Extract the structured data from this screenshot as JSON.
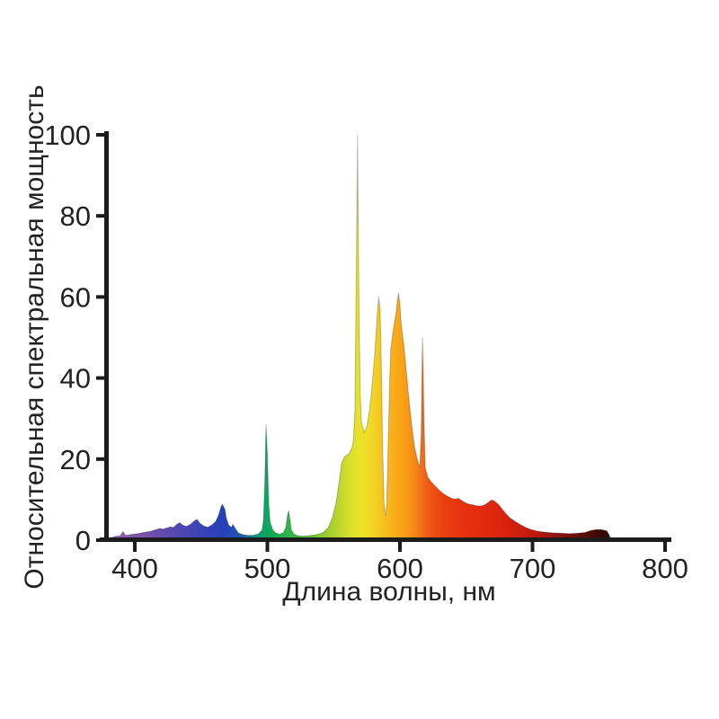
{
  "figure": {
    "background": "#ffffff",
    "axis_color": "#1c1c1c",
    "label_color": "#222222"
  },
  "chart_data": {
    "type": "area",
    "title": "",
    "xlabel": "Длина волны, нм",
    "ylabel": "Относительная спектральная мощность",
    "xlim": [
      378,
      800
    ],
    "ylim": [
      0,
      100
    ],
    "x_ticks": [
      400,
      500,
      600,
      700,
      800
    ],
    "y_ticks": [
      0,
      20,
      40,
      60,
      80,
      100
    ],
    "grid": false,
    "legend": false,
    "fill_style": "spectral-gradient",
    "points": [
      [
        378,
        0
      ],
      [
        382,
        0.6
      ],
      [
        386,
        1.0
      ],
      [
        389,
        1.1
      ],
      [
        391,
        2.1
      ],
      [
        393,
        1.2
      ],
      [
        397,
        1.4
      ],
      [
        402,
        1.6
      ],
      [
        407,
        1.9
      ],
      [
        412,
        2.2
      ],
      [
        416,
        2.6
      ],
      [
        419,
        2.9
      ],
      [
        421,
        2.7
      ],
      [
        424,
        3.0
      ],
      [
        427,
        3.3
      ],
      [
        429,
        3.1
      ],
      [
        432,
        4.0
      ],
      [
        434,
        4.3
      ],
      [
        436,
        3.7
      ],
      [
        439,
        3.4
      ],
      [
        442,
        3.9
      ],
      [
        445,
        4.8
      ],
      [
        447,
        5.1
      ],
      [
        449,
        4.2
      ],
      [
        452,
        3.5
      ],
      [
        455,
        3.2
      ],
      [
        458,
        3.7
      ],
      [
        461,
        4.6
      ],
      [
        463,
        6.0
      ],
      [
        465,
        8.2
      ],
      [
        466,
        8.9
      ],
      [
        468,
        7.6
      ],
      [
        469,
        5.4
      ],
      [
        471,
        3.6
      ],
      [
        473,
        3.2
      ],
      [
        474,
        3.9
      ],
      [
        476,
        2.8
      ],
      [
        478,
        1.8
      ],
      [
        481,
        1.4
      ],
      [
        485,
        1.2
      ],
      [
        489,
        1.2
      ],
      [
        493,
        1.5
      ],
      [
        496,
        2.5
      ],
      [
        497,
        5
      ],
      [
        498,
        14
      ],
      [
        499,
        28.5
      ],
      [
        500,
        21
      ],
      [
        501,
        9
      ],
      [
        502,
        4.5
      ],
      [
        504,
        2.6
      ],
      [
        506,
        1.8
      ],
      [
        509,
        1.5
      ],
      [
        512,
        1.8
      ],
      [
        514,
        3.2
      ],
      [
        515,
        5.8
      ],
      [
        516,
        7.3
      ],
      [
        517,
        5.2
      ],
      [
        518,
        2.6
      ],
      [
        520,
        1.5
      ],
      [
        523,
        1.1
      ],
      [
        527,
        1.0
      ],
      [
        531,
        1.1
      ],
      [
        536,
        1.3
      ],
      [
        540,
        1.6
      ],
      [
        543,
        2.1
      ],
      [
        546,
        3.2
      ],
      [
        549,
        5.5
      ],
      [
        552,
        9.5
      ],
      [
        554,
        14
      ],
      [
        556,
        19
      ],
      [
        558,
        20.5
      ],
      [
        560,
        21
      ],
      [
        562,
        21.5
      ],
      [
        564,
        23
      ],
      [
        565,
        25
      ],
      [
        566,
        32
      ],
      [
        567,
        62
      ],
      [
        568,
        100
      ],
      [
        569,
        60
      ],
      [
        570,
        36
      ],
      [
        571,
        29
      ],
      [
        573,
        26.5
      ],
      [
        575,
        28
      ],
      [
        577,
        32
      ],
      [
        579,
        38
      ],
      [
        581,
        46
      ],
      [
        583,
        56
      ],
      [
        584,
        60
      ],
      [
        585,
        57
      ],
      [
        586,
        42
      ],
      [
        587,
        22
      ],
      [
        588,
        9
      ],
      [
        589,
        6
      ],
      [
        590,
        9
      ],
      [
        591,
        22
      ],
      [
        592,
        36
      ],
      [
        593,
        47
      ],
      [
        595,
        52
      ],
      [
        597,
        56
      ],
      [
        598,
        59
      ],
      [
        599,
        61
      ],
      [
        600,
        58
      ],
      [
        601,
        53
      ],
      [
        603,
        48
      ],
      [
        605,
        41
      ],
      [
        607,
        34
      ],
      [
        609,
        28
      ],
      [
        611,
        23
      ],
      [
        613,
        20
      ],
      [
        615,
        18
      ],
      [
        616,
        26
      ],
      [
        617,
        50
      ],
      [
        618,
        32
      ],
      [
        619,
        18
      ],
      [
        621,
        15.5
      ],
      [
        624,
        14.2
      ],
      [
        627,
        13.2
      ],
      [
        630,
        12.2
      ],
      [
        633,
        11.4
      ],
      [
        636,
        10.8
      ],
      [
        639,
        10.3
      ],
      [
        642,
        10.1
      ],
      [
        644,
        10.3
      ],
      [
        646,
        9.9
      ],
      [
        649,
        9.3
      ],
      [
        652,
        8.9
      ],
      [
        655,
        8.7
      ],
      [
        658,
        8.5
      ],
      [
        661,
        8.4
      ],
      [
        664,
        8.7
      ],
      [
        667,
        9.4
      ],
      [
        669,
        9.9
      ],
      [
        671,
        9.7
      ],
      [
        674,
        8.9
      ],
      [
        677,
        7.7
      ],
      [
        680,
        6.5
      ],
      [
        683,
        5.5
      ],
      [
        687,
        4.6
      ],
      [
        691,
        3.8
      ],
      [
        695,
        3.1
      ],
      [
        699,
        2.6
      ],
      [
        704,
        2.2
      ],
      [
        709,
        2.0
      ],
      [
        715,
        1.8
      ],
      [
        721,
        1.7
      ],
      [
        728,
        1.6
      ],
      [
        734,
        1.7
      ],
      [
        740,
        1.9
      ],
      [
        744,
        2.4
      ],
      [
        748,
        2.6
      ],
      [
        752,
        2.6
      ],
      [
        756,
        2.3
      ],
      [
        758,
        1.2
      ],
      [
        759,
        0
      ]
    ],
    "gradient_stops": [
      [
        378,
        "#a873bd"
      ],
      [
        395,
        "#8b58ae"
      ],
      [
        410,
        "#7650ac"
      ],
      [
        425,
        "#5f49b0"
      ],
      [
        440,
        "#4845b4"
      ],
      [
        455,
        "#3342b6"
      ],
      [
        468,
        "#2641b8"
      ],
      [
        480,
        "#215ab0"
      ],
      [
        490,
        "#128c86"
      ],
      [
        497,
        "#0ba464"
      ],
      [
        505,
        "#12ac55"
      ],
      [
        516,
        "#2fb448"
      ],
      [
        528,
        "#55bd3a"
      ],
      [
        540,
        "#86c930"
      ],
      [
        552,
        "#b4d42c"
      ],
      [
        562,
        "#d7df2b"
      ],
      [
        570,
        "#eae32a"
      ],
      [
        578,
        "#f0d926"
      ],
      [
        586,
        "#f6c41f"
      ],
      [
        594,
        "#f8b01a"
      ],
      [
        602,
        "#f9a116"
      ],
      [
        610,
        "#f68c19"
      ],
      [
        617,
        "#f16b17"
      ],
      [
        625,
        "#ec4f13"
      ],
      [
        635,
        "#e93d10"
      ],
      [
        648,
        "#e6320f"
      ],
      [
        662,
        "#e22b0e"
      ],
      [
        678,
        "#da240e"
      ],
      [
        692,
        "#cc1d0d"
      ],
      [
        705,
        "#b5170c"
      ],
      [
        720,
        "#8e120a"
      ],
      [
        735,
        "#640d08"
      ],
      [
        748,
        "#400b07"
      ],
      [
        759,
        "#2a0906"
      ]
    ]
  }
}
